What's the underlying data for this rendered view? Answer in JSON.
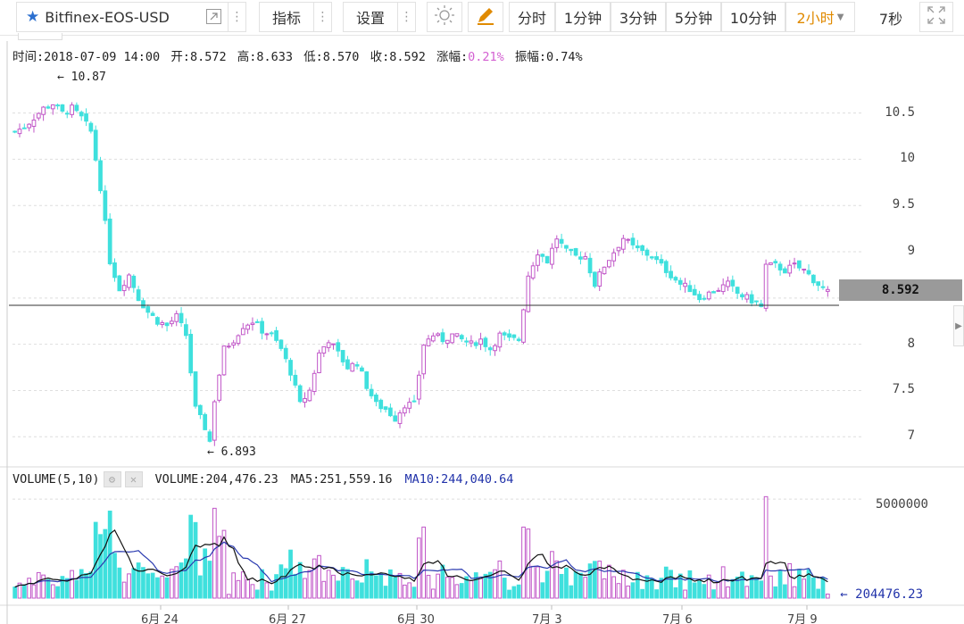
{
  "toolbar": {
    "symbol": "Bitfinex-EOS-USD",
    "indicators_label": "指标",
    "settings_label": "设置",
    "intervals": [
      "分时",
      "1分钟",
      "3分钟",
      "5分钟",
      "10分钟",
      "2小时"
    ],
    "active_interval": "2小时",
    "refresh_label": "7秒",
    "icons": [
      "star-icon",
      "external-link-icon",
      "more-icon",
      "sun-icon",
      "pencil-icon",
      "chevron-down-icon",
      "fullscreen-icon"
    ],
    "accent_color": "#e08a00"
  },
  "info": {
    "time": "时间:2018-07-09 14:00",
    "open": "开:8.572",
    "high": "高:8.633",
    "low": "低:8.570",
    "close": "收:8.592",
    "change_label": "涨幅:",
    "change_value": "0.21%",
    "amplitude": "振幅:0.74%"
  },
  "price_axis": [
    "10.5",
    "10",
    "9.5",
    "9",
    "8.5",
    "8",
    "7.5",
    "7"
  ],
  "current_price": "8.592",
  "annotations": {
    "high": "10.87",
    "low": "6.893"
  },
  "volume_info": {
    "title": "VOLUME(5,10)",
    "volume": "VOLUME:204,476.23",
    "ma5": "MA5:251,559.16",
    "ma10": "MA10:244,040.64"
  },
  "volume_axis": [
    "5000000"
  ],
  "volume_last": "204476.23",
  "x_axis": [
    "6月 24",
    "6月 27",
    "6月 30",
    "7月 3",
    "7月 6",
    "7月 9"
  ],
  "colors": {
    "up": "#c157c8",
    "down": "#3fe0dd",
    "ma5": "#111111",
    "ma10": "#2b3bb0"
  },
  "chart_data": {
    "type": "candlestick",
    "symbol": "EOS/USD",
    "x_ticks": [
      "6月 24",
      "6月 27",
      "6月 30",
      "7月 3",
      "7月 6",
      "7月 9"
    ],
    "y_ticks": [
      7,
      7.5,
      8,
      8.5,
      9,
      9.5,
      10,
      10.5
    ],
    "ylim": [
      6.8,
      10.95
    ],
    "close_path": [
      [
        0,
        10.3
      ],
      [
        2,
        10.35
      ],
      [
        4,
        10.45
      ],
      [
        6,
        10.55
      ],
      [
        8,
        10.6
      ],
      [
        10,
        10.5
      ],
      [
        12,
        10.55
      ],
      [
        14,
        10.45
      ],
      [
        16,
        10.3
      ],
      [
        18,
        9.7
      ],
      [
        20,
        8.9
      ],
      [
        22,
        8.6
      ],
      [
        24,
        8.75
      ],
      [
        26,
        8.5
      ],
      [
        28,
        8.35
      ],
      [
        30,
        8.25
      ],
      [
        32,
        8.2
      ],
      [
        34,
        8.3
      ],
      [
        36,
        8.1
      ],
      [
        38,
        7.3
      ],
      [
        40,
        7.1
      ],
      [
        41,
        6.95
      ],
      [
        42,
        7.4
      ],
      [
        44,
        7.95
      ],
      [
        46,
        8.05
      ],
      [
        48,
        8.2
      ],
      [
        50,
        8.25
      ],
      [
        52,
        8.15
      ],
      [
        54,
        8.1
      ],
      [
        56,
        7.95
      ],
      [
        58,
        7.7
      ],
      [
        60,
        7.35
      ],
      [
        62,
        7.5
      ],
      [
        64,
        7.9
      ],
      [
        66,
        8.05
      ],
      [
        68,
        7.9
      ],
      [
        70,
        7.75
      ],
      [
        72,
        7.8
      ],
      [
        74,
        7.55
      ],
      [
        76,
        7.35
      ],
      [
        78,
        7.3
      ],
      [
        80,
        7.2
      ],
      [
        82,
        7.35
      ],
      [
        84,
        7.35
      ],
      [
        86,
        8.0
      ],
      [
        88,
        8.1
      ],
      [
        90,
        8.05
      ],
      [
        92,
        8.1
      ],
      [
        94,
        8.05
      ],
      [
        96,
        8.0
      ],
      [
        98,
        8.05
      ],
      [
        100,
        7.95
      ],
      [
        102,
        8.1
      ],
      [
        104,
        8.05
      ],
      [
        106,
        8.05
      ],
      [
        108,
        8.75
      ],
      [
        110,
        9.0
      ],
      [
        112,
        8.9
      ],
      [
        114,
        9.15
      ],
      [
        116,
        9.0
      ],
      [
        118,
        8.95
      ],
      [
        120,
        8.95
      ],
      [
        122,
        8.65
      ],
      [
        124,
        8.85
      ],
      [
        126,
        9.0
      ],
      [
        128,
        9.15
      ],
      [
        130,
        9.05
      ],
      [
        132,
        9.0
      ],
      [
        134,
        8.95
      ],
      [
        136,
        8.85
      ],
      [
        138,
        8.75
      ],
      [
        140,
        8.65
      ],
      [
        142,
        8.6
      ],
      [
        144,
        8.5
      ],
      [
        146,
        8.55
      ],
      [
        148,
        8.6
      ],
      [
        150,
        8.65
      ],
      [
        152,
        8.55
      ],
      [
        154,
        8.5
      ],
      [
        156,
        8.45
      ],
      [
        157,
        8.4
      ],
      [
        158,
        8.85
      ],
      [
        160,
        8.85
      ],
      [
        162,
        8.8
      ],
      [
        164,
        8.85
      ],
      [
        166,
        8.8
      ],
      [
        168,
        8.7
      ],
      [
        170,
        8.6
      ],
      [
        171,
        8.59
      ]
    ],
    "volume": {
      "ylim": [
        0,
        5500000
      ],
      "tick": 5000000,
      "last": 204476.23
    },
    "last": {
      "time": "2018-07-09 14:00",
      "open": 8.572,
      "high": 8.633,
      "low": 8.57,
      "close": 8.592,
      "change_pct": 0.21,
      "amplitude_pct": 0.74
    }
  }
}
